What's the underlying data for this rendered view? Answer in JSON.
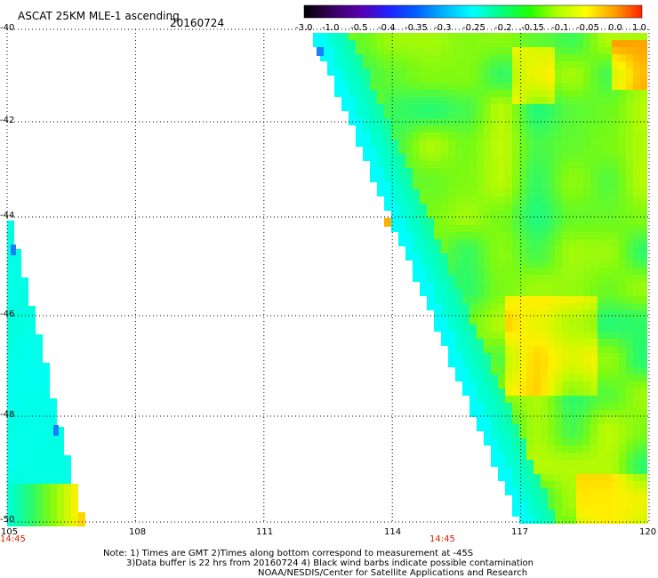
{
  "header": {
    "product": "ASCAT 25KM MLE-1 ascending",
    "date": "20160724"
  },
  "colorbar": {
    "ticks": [
      "-3.0",
      "-1.0",
      "-0.5",
      "-0.4",
      "-0.35",
      "-0.3",
      "-0.25",
      "-0.2",
      "-0.15",
      "-0.1",
      "-0.05",
      "0.0",
      "1.0"
    ],
    "colors": [
      "#000000",
      "#3a0060",
      "#5a00b0",
      "#2020ff",
      "#0060ff",
      "#00b8ff",
      "#00ffff",
      "#00ff80",
      "#20ff00",
      "#b0ff00",
      "#ffff00",
      "#ffa000",
      "#ff2000"
    ]
  },
  "axes": {
    "x_ticks": [
      "105",
      "108",
      "111",
      "114",
      "117",
      "120"
    ],
    "y_ticks": [
      "-40",
      "-42",
      "-44",
      "-46",
      "-48",
      "-50"
    ],
    "time_labels": [
      "14:45",
      "14:45"
    ]
  },
  "notes": {
    "line1": "Note: 1) Times are GMT 2)Times along bottom correspond to measurement at -45S",
    "line2": "3)Data buffer is 22 hrs from 20160724 4) Black wind barbs indicate possible contamination",
    "line3": "NOAA/NESDIS/Center for Satellite Applications and Research"
  }
}
